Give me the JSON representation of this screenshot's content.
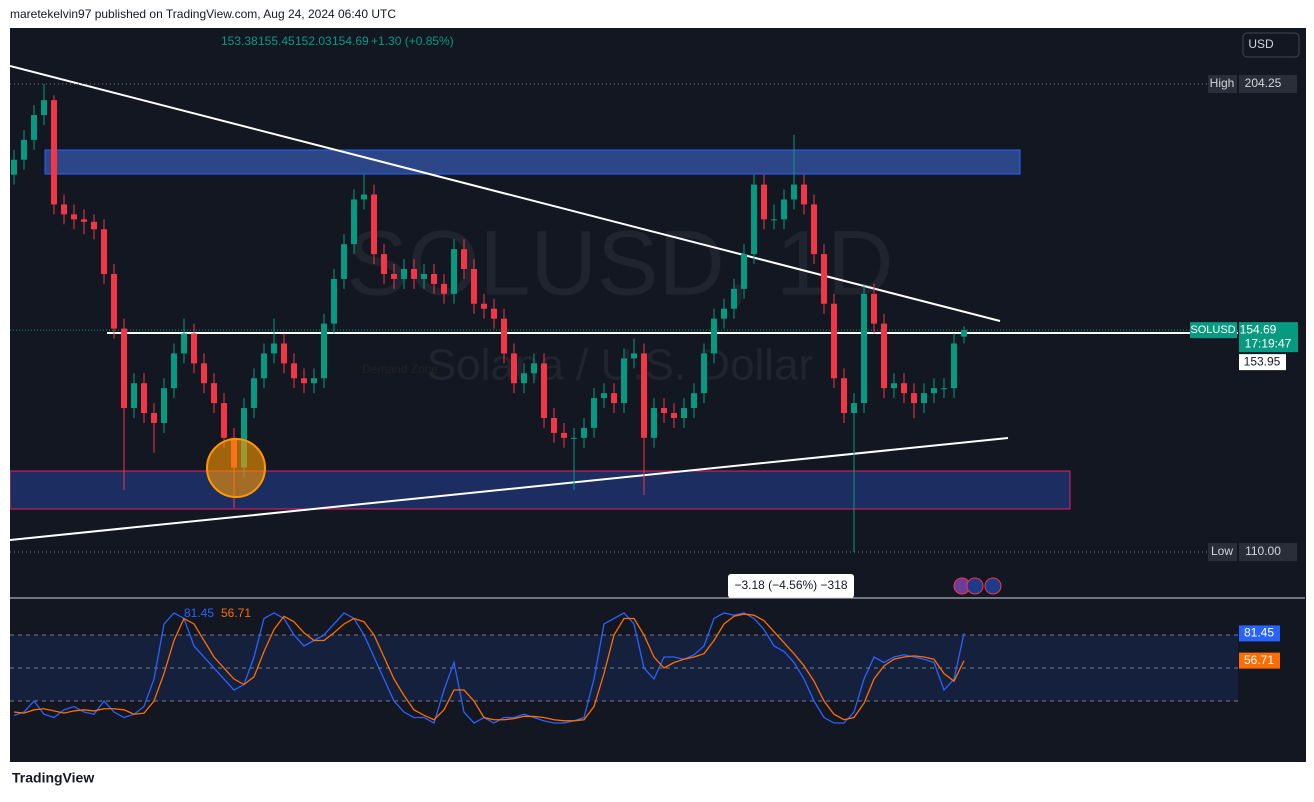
{
  "header": {
    "publisher": "maretekelvin97 published on TradingView.com, Aug 24, 2024 06:40 UTC",
    "currency": "USD"
  },
  "chart_data": [
    {
      "type": "candlestick",
      "symbol": "SOLUSD, 1D",
      "description": "Solana / U.S. Dollar",
      "change": "+1.30 (+0.85%)",
      "open": [
        186,
        189,
        193,
        198,
        201,
        180,
        178,
        177,
        176.5,
        175,
        166,
        155,
        139,
        144,
        138,
        136,
        143,
        150,
        154,
        148,
        144,
        140,
        133,
        127,
        139,
        145,
        150,
        152,
        148,
        145,
        144,
        145,
        156,
        165,
        172,
        181,
        182,
        170,
        166,
        165,
        167,
        165,
        166,
        164,
        162,
        171,
        167,
        160,
        159,
        157,
        150,
        144,
        146,
        148,
        137,
        134,
        133,
        133,
        135,
        141,
        142,
        140,
        149,
        150,
        133,
        139,
        138,
        137,
        139,
        142,
        150,
        157,
        159,
        163,
        170,
        184,
        177,
        177,
        181,
        184,
        180,
        170,
        160,
        145,
        138,
        140,
        162,
        156,
        143,
        144,
        142,
        140,
        142,
        143,
        143,
        153.38
      ],
      "high": [
        191,
        195,
        200,
        204.25,
        202,
        182,
        180,
        179,
        178,
        177,
        168,
        157,
        146,
        146,
        140,
        145,
        152,
        157,
        156,
        150,
        146,
        142,
        135,
        141,
        147,
        152,
        157,
        154,
        150,
        147,
        147,
        158,
        167,
        174,
        183,
        186,
        184,
        172,
        168,
        169,
        169,
        168,
        168,
        166,
        173,
        173,
        169,
        162,
        161,
        159,
        152,
        148,
        150,
        150,
        139,
        136,
        135,
        137,
        143,
        144,
        144,
        151,
        153,
        152,
        141,
        141,
        140,
        141,
        144,
        152,
        159,
        161,
        165,
        172,
        186,
        186,
        180,
        183,
        194,
        186,
        182,
        172,
        162,
        147,
        142,
        164,
        164,
        158,
        146,
        146,
        144,
        144,
        145,
        145,
        154,
        155.45
      ],
      "low": [
        184,
        187,
        191,
        196,
        178,
        176,
        175,
        174,
        173,
        164,
        153,
        122.5,
        137,
        136,
        130,
        134,
        141,
        148,
        146,
        142,
        138,
        131,
        118.9,
        125,
        137,
        143,
        148,
        146,
        143,
        142,
        142,
        143,
        154,
        163,
        170,
        179,
        168,
        164,
        163,
        163,
        163,
        163,
        162,
        160,
        160,
        165,
        158,
        157,
        155,
        148,
        142,
        142,
        144,
        135,
        132,
        131,
        122.5,
        131,
        133,
        139,
        138,
        138,
        147,
        121.5,
        131,
        136,
        135,
        135,
        137,
        140,
        148,
        155,
        157,
        161,
        168,
        175,
        175,
        175,
        179,
        178,
        168,
        158,
        143,
        136,
        110,
        138,
        154,
        141,
        141,
        140,
        137,
        138,
        140,
        141,
        141,
        152.03
      ],
      "close": [
        189,
        193,
        198,
        201,
        180,
        178,
        177,
        176.5,
        175,
        166,
        155,
        139,
        144,
        138,
        136,
        143,
        150,
        154,
        148,
        144,
        140,
        133,
        127,
        139,
        145,
        150,
        152,
        148,
        145,
        144,
        145,
        156,
        165,
        172,
        181,
        182,
        170,
        166,
        165,
        167,
        165,
        166,
        164,
        162,
        171,
        167,
        160,
        159,
        157,
        150,
        144,
        146,
        148,
        137,
        134,
        133,
        133,
        135,
        141,
        142,
        140,
        149,
        150,
        133,
        139,
        138,
        137,
        139,
        142,
        150,
        157,
        159,
        163,
        170,
        184,
        177,
        177,
        181,
        184,
        180,
        170,
        160,
        145,
        138,
        140,
        162,
        156,
        143,
        144,
        142,
        140,
        142,
        143,
        143,
        152,
        154.69
      ],
      "up_color": "#089981",
      "down_color": "#f23645",
      "ylim": [
        100.95,
        215.53
      ],
      "high_marker": {
        "name": "High",
        "value": 204.25
      },
      "low_marker": {
        "name": "Low",
        "value": {
          "value": 110,
          "label": "110.00"
        }
      },
      "last_price": {
        "name": "SOLUSD",
        "countdown": "17:19:47"
      },
      "line_price": 153.95,
      "annotation": "Demand Zone",
      "measure": "−3.18 (−4.56%) −318"
    },
    {
      "type": "line",
      "series": [
        {
          "color": "#2962ff",
          "values": [
            7,
            10,
            20,
            8,
            5,
            12,
            15,
            10,
            8,
            20,
            10,
            5,
            8,
            15,
            40,
            90,
            100,
            95,
            70,
            60,
            50,
            40,
            30,
            35,
            60,
            95,
            100,
            95,
            80,
            70,
            75,
            80,
            90,
            100,
            95,
            80,
            60,
            40,
            20,
            10,
            5,
            5,
            0,
            30,
            55,
            10,
            0,
            5,
            0,
            5,
            5,
            8,
            5,
            2,
            0,
            0,
            2,
            5,
            40,
            90,
            95,
            100,
            90,
            50,
            40,
            60,
            60,
            58,
            62,
            70,
            95,
            100,
            98,
            100,
            95,
            85,
            70,
            65,
            55,
            40,
            20,
            5,
            0,
            0,
            10,
            40,
            60,
            55,
            60,
            62,
            60,
            58,
            55,
            30,
            40,
            81.45
          ]
        },
        {
          "color": "#ff6d00",
          "values": [
            10,
            9,
            12,
            13,
            11,
            9,
            11,
            12,
            11,
            13,
            13,
            12,
            8,
            9,
            20,
            45,
            75,
            95,
            90,
            75,
            60,
            50,
            40,
            35,
            42,
            65,
            85,
            97,
            92,
            82,
            75,
            75,
            82,
            90,
            95,
            92,
            80,
            60,
            40,
            25,
            12,
            7,
            3,
            12,
            30,
            30,
            20,
            5,
            3,
            3,
            4,
            6,
            6,
            5,
            3,
            2,
            2,
            3,
            15,
            45,
            80,
            95,
            95,
            80,
            60,
            50,
            55,
            58,
            60,
            63,
            75,
            90,
            97,
            99,
            98,
            93,
            83,
            73,
            63,
            52,
            38,
            20,
            8,
            3,
            5,
            18,
            40,
            52,
            58,
            60,
            61,
            60,
            58,
            45,
            38,
            56.71
          ]
        }
      ],
      "ylim": [
        -33.6,
        111.8
      ],
      "levels": [
        80,
        50,
        20
      ]
    }
  ],
  "footer": {
    "brand": "TradingView"
  }
}
